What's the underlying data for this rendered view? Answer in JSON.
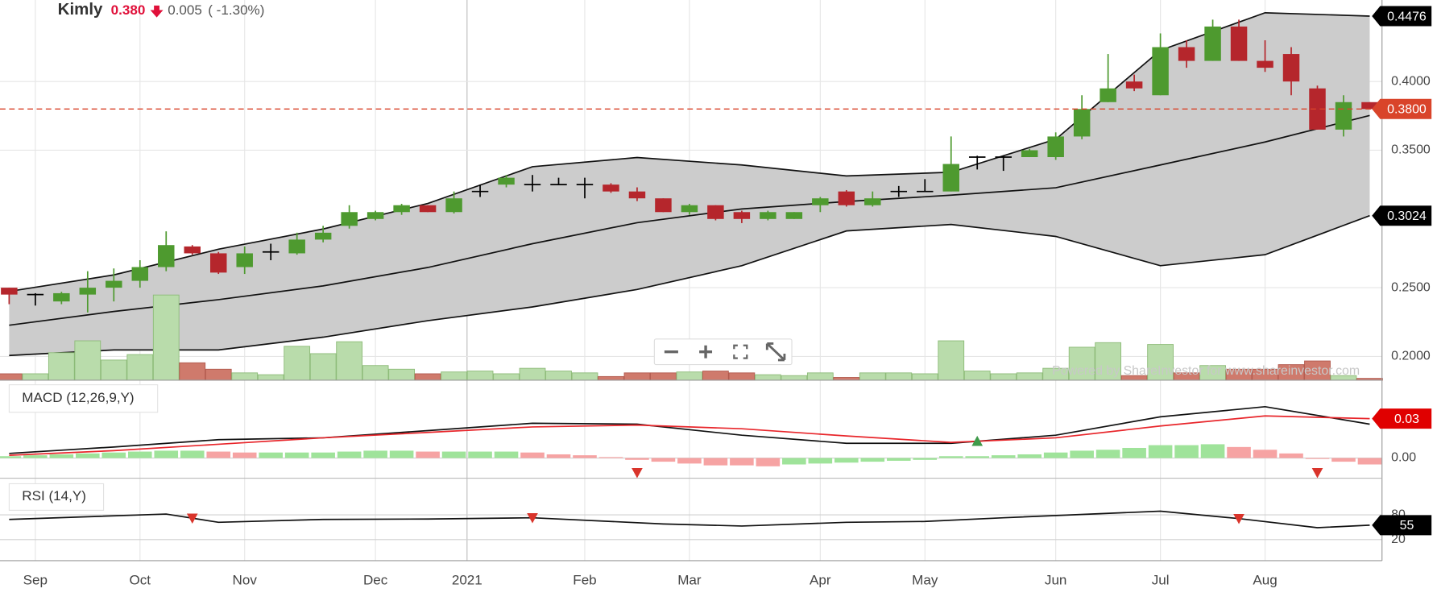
{
  "header": {
    "name": "Kimly",
    "price": "0.380",
    "change": "0.005",
    "change_pct": "( -1.30%)"
  },
  "watermark": "Powered by ShareInvestor for www.shareinvestor.com",
  "chart_data": [
    {
      "type": "candlestick",
      "xlim": [
        -0.35,
        52.47
      ],
      "xticks": [
        {
          "value": 1,
          "label": "Sep"
        },
        {
          "value": 5,
          "label": "Oct"
        },
        {
          "value": 9,
          "label": "Nov"
        },
        {
          "value": 14,
          "label": "Dec"
        },
        {
          "value": 17.5,
          "label": "2021"
        },
        {
          "value": 22,
          "label": "Feb"
        },
        {
          "value": 26,
          "label": "Mar"
        },
        {
          "value": 31,
          "label": "Apr"
        },
        {
          "value": 35,
          "label": "May"
        },
        {
          "value": 40,
          "label": "Jun"
        },
        {
          "value": 44,
          "label": "Jul"
        },
        {
          "value": 48,
          "label": "Aug"
        }
      ],
      "ylim": [
        0.1827,
        0.4593
      ],
      "yticks": [
        {
          "value": 0.2,
          "label": "0.2000"
        },
        {
          "value": 0.25,
          "label": "0.2500"
        },
        {
          "value": 0.35,
          "label": "0.3500"
        },
        {
          "value": 0.4,
          "label": "0.4000"
        }
      ],
      "grid": true,
      "open": [
        0.25,
        0.245,
        0.24,
        0.245,
        0.25,
        0.255,
        0.265,
        0.28,
        0.275,
        0.265,
        0.276,
        0.275,
        0.285,
        0.295,
        0.3,
        0.305,
        0.31,
        0.305,
        0.32,
        0.325,
        0.325,
        0.325,
        0.325,
        0.325,
        0.32,
        0.315,
        0.305,
        0.31,
        0.305,
        0.3,
        0.3,
        0.31,
        0.32,
        0.31,
        0.32,
        0.32,
        0.32,
        0.345,
        0.345,
        0.345,
        0.345,
        0.36,
        0.385,
        0.4,
        0.39,
        0.425,
        0.415,
        0.44,
        0.415,
        0.42,
        0.395,
        0.365,
        0.385
      ],
      "high": [
        0.25,
        0.246,
        0.247,
        0.262,
        0.264,
        0.27,
        0.291,
        0.281,
        0.276,
        0.28,
        0.282,
        0.29,
        0.295,
        0.31,
        0.306,
        0.311,
        0.31,
        0.32,
        0.325,
        0.332,
        0.332,
        0.33,
        0.33,
        0.326,
        0.323,
        0.315,
        0.311,
        0.31,
        0.306,
        0.306,
        0.305,
        0.316,
        0.321,
        0.32,
        0.324,
        0.329,
        0.36,
        0.346,
        0.346,
        0.351,
        0.363,
        0.39,
        0.42,
        0.405,
        0.435,
        0.43,
        0.445,
        0.445,
        0.43,
        0.425,
        0.397,
        0.39,
        0.385
      ],
      "low": [
        0.238,
        0.237,
        0.238,
        0.232,
        0.24,
        0.25,
        0.262,
        0.274,
        0.26,
        0.26,
        0.27,
        0.274,
        0.283,
        0.293,
        0.299,
        0.303,
        0.305,
        0.304,
        0.316,
        0.323,
        0.32,
        0.325,
        0.315,
        0.319,
        0.313,
        0.305,
        0.303,
        0.299,
        0.297,
        0.299,
        0.3,
        0.305,
        0.309,
        0.309,
        0.316,
        0.32,
        0.32,
        0.336,
        0.335,
        0.345,
        0.343,
        0.358,
        0.385,
        0.393,
        0.39,
        0.41,
        0.415,
        0.415,
        0.407,
        0.39,
        0.365,
        0.36,
        0.38
      ],
      "close": [
        0.245,
        0.245,
        0.246,
        0.25,
        0.255,
        0.265,
        0.281,
        0.275,
        0.261,
        0.275,
        0.276,
        0.285,
        0.29,
        0.305,
        0.305,
        0.31,
        0.305,
        0.315,
        0.32,
        0.33,
        0.325,
        0.325,
        0.325,
        0.32,
        0.315,
        0.305,
        0.31,
        0.3,
        0.3,
        0.305,
        0.305,
        0.315,
        0.31,
        0.315,
        0.32,
        0.32,
        0.34,
        0.345,
        0.345,
        0.35,
        0.36,
        0.38,
        0.395,
        0.395,
        0.425,
        0.415,
        0.44,
        0.415,
        0.41,
        0.4,
        0.365,
        0.385,
        0.38
      ],
      "up_color": "#4e9a2f",
      "down_color": "#b5262c",
      "flat_color": "#000000",
      "bands": {
        "x": [
          0,
          4,
          8,
          12,
          16,
          20,
          24,
          28,
          32,
          36,
          40,
          44,
          48,
          52
        ],
        "fill": "#cccccc",
        "series": [
          {
            "color": "#111111",
            "values": [
              0.2473,
              0.2593,
              0.278,
              0.2927,
              0.3113,
              0.338,
              0.3447,
              0.3393,
              0.3313,
              0.334,
              0.358,
              0.4227,
              0.45,
              0.4476
            ]
          },
          {
            "color": "#111111",
            "values": [
              0.2227,
              0.2327,
              0.2413,
              0.2513,
              0.2647,
              0.282,
              0.2973,
              0.3073,
              0.3127,
              0.3173,
              0.3227,
              0.3393,
              0.356,
              0.3753
            ]
          },
          {
            "color": "#111111",
            "values": [
              0.2007,
              0.2047,
              0.2047,
              0.214,
              0.226,
              0.236,
              0.2487,
              0.266,
              0.2913,
              0.296,
              0.2873,
              0.266,
              0.274,
              0.3024
            ]
          }
        ]
      },
      "last_price": {
        "value": 0.38,
        "label": "0.3800",
        "color": "#d9442a"
      },
      "tags": [
        0.4476,
        0.3024
      ]
    },
    {
      "type": "bar",
      "values": [
        7,
        7,
        30,
        43,
        22,
        28,
        93,
        19,
        12,
        8,
        6,
        37,
        29,
        42,
        16,
        12,
        7,
        9,
        10,
        7,
        13,
        10,
        8,
        4,
        8,
        8,
        9,
        10,
        8,
        6,
        5,
        8,
        3,
        8,
        8,
        7,
        43,
        10,
        7,
        8,
        13,
        36,
        41,
        5,
        39,
        8,
        16,
        12,
        12,
        17,
        21,
        5,
        2
      ],
      "up_color": "#b9dcab",
      "down_color": "#cf7a6c"
    },
    {
      "type": "macd",
      "title": "MACD (12,26,9,Y)",
      "ylim": [
        -0.0154,
        0.0572
      ],
      "yticks": [
        {
          "value": 0,
          "label": "0.00"
        }
      ],
      "x": [
        0,
        4,
        8,
        12,
        16,
        20,
        24,
        28,
        32,
        36,
        40,
        44,
        48,
        52
      ],
      "series": [
        {
          "color": "#111111",
          "values": [
            0.0035,
            0.0084,
            0.014,
            0.0154,
            0.0209,
            0.0265,
            0.0258,
            0.0174,
            0.0112,
            0.0112,
            0.0174,
            0.0314,
            0.0391,
            0.0258
          ]
        },
        {
          "color": "#e8262b",
          "values": [
            0.0021,
            0.0056,
            0.0105,
            0.0154,
            0.0195,
            0.0237,
            0.0251,
            0.0223,
            0.0168,
            0.0119,
            0.0154,
            0.0244,
            0.0321,
            0.03
          ]
        }
      ],
      "histogram": [
        0.0014,
        0.0021,
        0.0028,
        0.0035,
        0.0042,
        0.0049,
        0.0056,
        0.0056,
        0.0049,
        0.0042,
        0.0042,
        0.0042,
        0.0042,
        0.0049,
        0.0056,
        0.0056,
        0.0049,
        0.0049,
        0.0049,
        0.0049,
        0.0042,
        0.0028,
        0.0021,
        0.0007,
        -0.0014,
        -0.0028,
        -0.0042,
        -0.0056,
        -0.0056,
        -0.0063,
        -0.0049,
        -0.0042,
        -0.0035,
        -0.0028,
        -0.0021,
        -0.0014,
        0.0014,
        0.0014,
        0.0021,
        0.0028,
        0.0042,
        0.0056,
        0.0063,
        0.0077,
        0.0098,
        0.0098,
        0.0105,
        0.0084,
        0.0063,
        0.0035,
        -0.0007,
        -0.0028,
        -0.0049
      ],
      "up_color": "#9fe39a",
      "down_color": "#f6a3a3",
      "tag": 0.03,
      "tag_color": "#e00000",
      "signals": [
        {
          "index": 24,
          "direction": "down",
          "color": "#d9342b"
        },
        {
          "index": 37,
          "direction": "up",
          "color": "#3f9a4a"
        },
        {
          "index": 50,
          "direction": "down",
          "color": "#d9342b"
        }
      ]
    },
    {
      "type": "line",
      "title": "RSI (14,Y)",
      "ylim": [
        -31.1,
        162.2
      ],
      "yticks": [
        80,
        20
      ],
      "x": [
        0,
        6,
        8,
        12,
        16,
        20,
        25,
        28,
        32,
        35,
        38,
        44,
        47,
        50,
        52
      ],
      "values": [
        69,
        82,
        62,
        69,
        70,
        73,
        58,
        53,
        62,
        64,
        73,
        89,
        71,
        49,
        55
      ],
      "color": "#111111",
      "tag": 55,
      "signals": [
        {
          "index": 7,
          "direction": "down",
          "color": "#d9342b"
        },
        {
          "index": 20,
          "direction": "down",
          "color": "#d9342b"
        },
        {
          "index": 47,
          "direction": "down",
          "color": "#d9342b"
        }
      ]
    }
  ]
}
